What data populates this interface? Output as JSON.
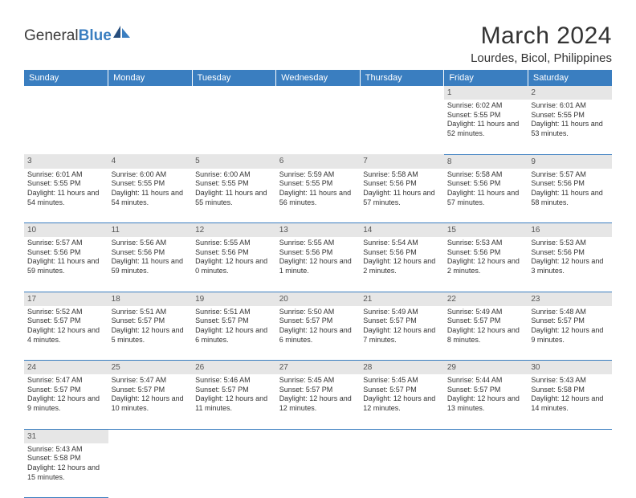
{
  "logo": {
    "word1": "General",
    "word2": "Blue"
  },
  "title": "March 2024",
  "location": "Lourdes, Bicol, Philippines",
  "colors": {
    "header_bg": "#3a7ec0",
    "header_text": "#ffffff",
    "daynum_bg": "#e6e6e6",
    "cell_border": "#3a7ec0",
    "body_text": "#333333"
  },
  "typography": {
    "title_fontsize": 30,
    "location_fontsize": 15,
    "header_fontsize": 11,
    "cell_fontsize": 9
  },
  "dayHeaders": [
    "Sunday",
    "Monday",
    "Tuesday",
    "Wednesday",
    "Thursday",
    "Friday",
    "Saturday"
  ],
  "weeks": [
    [
      {
        "day": "",
        "lines": []
      },
      {
        "day": "",
        "lines": []
      },
      {
        "day": "",
        "lines": []
      },
      {
        "day": "",
        "lines": []
      },
      {
        "day": "",
        "lines": []
      },
      {
        "day": "1",
        "lines": [
          "Sunrise: 6:02 AM",
          "Sunset: 5:55 PM",
          "Daylight: 11 hours and 52 minutes."
        ]
      },
      {
        "day": "2",
        "lines": [
          "Sunrise: 6:01 AM",
          "Sunset: 5:55 PM",
          "Daylight: 11 hours and 53 minutes."
        ]
      }
    ],
    [
      {
        "day": "3",
        "lines": [
          "Sunrise: 6:01 AM",
          "Sunset: 5:55 PM",
          "Daylight: 11 hours and 54 minutes."
        ]
      },
      {
        "day": "4",
        "lines": [
          "Sunrise: 6:00 AM",
          "Sunset: 5:55 PM",
          "Daylight: 11 hours and 54 minutes."
        ]
      },
      {
        "day": "5",
        "lines": [
          "Sunrise: 6:00 AM",
          "Sunset: 5:55 PM",
          "Daylight: 11 hours and 55 minutes."
        ]
      },
      {
        "day": "6",
        "lines": [
          "Sunrise: 5:59 AM",
          "Sunset: 5:55 PM",
          "Daylight: 11 hours and 56 minutes."
        ]
      },
      {
        "day": "7",
        "lines": [
          "Sunrise: 5:58 AM",
          "Sunset: 5:56 PM",
          "Daylight: 11 hours and 57 minutes."
        ]
      },
      {
        "day": "8",
        "lines": [
          "Sunrise: 5:58 AM",
          "Sunset: 5:56 PM",
          "Daylight: 11 hours and 57 minutes."
        ]
      },
      {
        "day": "9",
        "lines": [
          "Sunrise: 5:57 AM",
          "Sunset: 5:56 PM",
          "Daylight: 11 hours and 58 minutes."
        ]
      }
    ],
    [
      {
        "day": "10",
        "lines": [
          "Sunrise: 5:57 AM",
          "Sunset: 5:56 PM",
          "Daylight: 11 hours and 59 minutes."
        ]
      },
      {
        "day": "11",
        "lines": [
          "Sunrise: 5:56 AM",
          "Sunset: 5:56 PM",
          "Daylight: 11 hours and 59 minutes."
        ]
      },
      {
        "day": "12",
        "lines": [
          "Sunrise: 5:55 AM",
          "Sunset: 5:56 PM",
          "Daylight: 12 hours and 0 minutes."
        ]
      },
      {
        "day": "13",
        "lines": [
          "Sunrise: 5:55 AM",
          "Sunset: 5:56 PM",
          "Daylight: 12 hours and 1 minute."
        ]
      },
      {
        "day": "14",
        "lines": [
          "Sunrise: 5:54 AM",
          "Sunset: 5:56 PM",
          "Daylight: 12 hours and 2 minutes."
        ]
      },
      {
        "day": "15",
        "lines": [
          "Sunrise: 5:53 AM",
          "Sunset: 5:56 PM",
          "Daylight: 12 hours and 2 minutes."
        ]
      },
      {
        "day": "16",
        "lines": [
          "Sunrise: 5:53 AM",
          "Sunset: 5:56 PM",
          "Daylight: 12 hours and 3 minutes."
        ]
      }
    ],
    [
      {
        "day": "17",
        "lines": [
          "Sunrise: 5:52 AM",
          "Sunset: 5:57 PM",
          "Daylight: 12 hours and 4 minutes."
        ]
      },
      {
        "day": "18",
        "lines": [
          "Sunrise: 5:51 AM",
          "Sunset: 5:57 PM",
          "Daylight: 12 hours and 5 minutes."
        ]
      },
      {
        "day": "19",
        "lines": [
          "Sunrise: 5:51 AM",
          "Sunset: 5:57 PM",
          "Daylight: 12 hours and 6 minutes."
        ]
      },
      {
        "day": "20",
        "lines": [
          "Sunrise: 5:50 AM",
          "Sunset: 5:57 PM",
          "Daylight: 12 hours and 6 minutes."
        ]
      },
      {
        "day": "21",
        "lines": [
          "Sunrise: 5:49 AM",
          "Sunset: 5:57 PM",
          "Daylight: 12 hours and 7 minutes."
        ]
      },
      {
        "day": "22",
        "lines": [
          "Sunrise: 5:49 AM",
          "Sunset: 5:57 PM",
          "Daylight: 12 hours and 8 minutes."
        ]
      },
      {
        "day": "23",
        "lines": [
          "Sunrise: 5:48 AM",
          "Sunset: 5:57 PM",
          "Daylight: 12 hours and 9 minutes."
        ]
      }
    ],
    [
      {
        "day": "24",
        "lines": [
          "Sunrise: 5:47 AM",
          "Sunset: 5:57 PM",
          "Daylight: 12 hours and 9 minutes."
        ]
      },
      {
        "day": "25",
        "lines": [
          "Sunrise: 5:47 AM",
          "Sunset: 5:57 PM",
          "Daylight: 12 hours and 10 minutes."
        ]
      },
      {
        "day": "26",
        "lines": [
          "Sunrise: 5:46 AM",
          "Sunset: 5:57 PM",
          "Daylight: 12 hours and 11 minutes."
        ]
      },
      {
        "day": "27",
        "lines": [
          "Sunrise: 5:45 AM",
          "Sunset: 5:57 PM",
          "Daylight: 12 hours and 12 minutes."
        ]
      },
      {
        "day": "28",
        "lines": [
          "Sunrise: 5:45 AM",
          "Sunset: 5:57 PM",
          "Daylight: 12 hours and 12 minutes."
        ]
      },
      {
        "day": "29",
        "lines": [
          "Sunrise: 5:44 AM",
          "Sunset: 5:57 PM",
          "Daylight: 12 hours and 13 minutes."
        ]
      },
      {
        "day": "30",
        "lines": [
          "Sunrise: 5:43 AM",
          "Sunset: 5:58 PM",
          "Daylight: 12 hours and 14 minutes."
        ]
      }
    ],
    [
      {
        "day": "31",
        "lines": [
          "Sunrise: 5:43 AM",
          "Sunset: 5:58 PM",
          "Daylight: 12 hours and 15 minutes."
        ]
      },
      {
        "day": "",
        "lines": []
      },
      {
        "day": "",
        "lines": []
      },
      {
        "day": "",
        "lines": []
      },
      {
        "day": "",
        "lines": []
      },
      {
        "day": "",
        "lines": []
      },
      {
        "day": "",
        "lines": []
      }
    ]
  ]
}
